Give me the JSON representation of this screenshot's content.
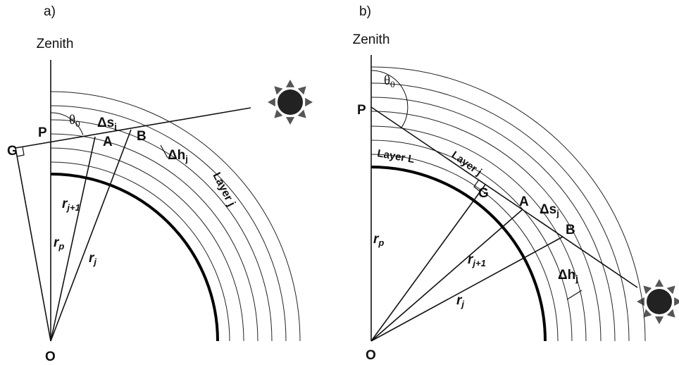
{
  "panels": [
    {
      "tag": "a)",
      "zenith": "Zenith",
      "labels": [
        {
          "text": "G"
        },
        {
          "text": "P"
        },
        {
          "text": "θ",
          "sub": "0"
        },
        {
          "text": "Δs",
          "sub": "j"
        },
        {
          "text": "A"
        },
        {
          "text": "B"
        },
        {
          "text": "Δh",
          "sub": "j"
        },
        {
          "text": "Layer j"
        },
        {
          "text": "r",
          "sub": "j+1"
        },
        {
          "text": "r",
          "sub": "p"
        },
        {
          "text": "r",
          "sub": "j"
        },
        {
          "text": "O"
        }
      ]
    },
    {
      "tag": "b)",
      "zenith": "Zenith",
      "labels": [
        {
          "text": "P"
        },
        {
          "text": "θ",
          "sub": "0"
        },
        {
          "text": "Layer L"
        },
        {
          "text": "Layer j"
        },
        {
          "text": "G"
        },
        {
          "text": "A"
        },
        {
          "text": "Δs",
          "sub": "j"
        },
        {
          "text": "B"
        },
        {
          "text": "r",
          "sub": "p"
        },
        {
          "text": "r",
          "sub": "j+1"
        },
        {
          "text": "Δh",
          "sub": "j"
        },
        {
          "text": "r",
          "sub": "j"
        },
        {
          "text": "O"
        }
      ]
    }
  ]
}
